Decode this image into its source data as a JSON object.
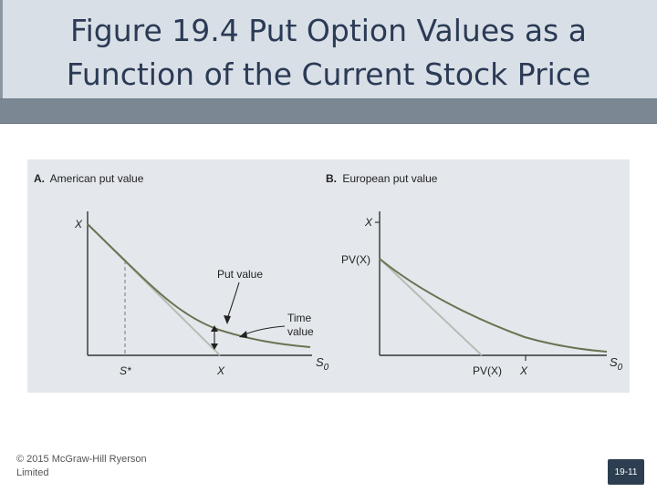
{
  "slide": {
    "title_line1": "Figure 19.4 Put Option Values as a",
    "title_line2": "Function of the Current Stock Price",
    "footer_line1": "© 2015 McGraw-Hill Ryerson",
    "footer_line2": "Limited",
    "page_number": "19-11"
  },
  "panel_a": {
    "heading_letter": "A.",
    "heading_text": "American put value",
    "y_tick": "X",
    "x_tick_sstar": "S*",
    "x_tick_x": "X",
    "x_axis_label": "S",
    "x_axis_sub": "0",
    "annotation_put_value": "Put value",
    "annotation_time_value_1": "Time",
    "annotation_time_value_2": "value"
  },
  "panel_b": {
    "heading_letter": "B.",
    "heading_text": "European put value",
    "y_tick_x": "X",
    "y_tick_pvx": "PV(X)",
    "x_tick_pvx": "PV(X)",
    "x_tick_x": "X",
    "x_axis_label": "S",
    "x_axis_sub": "0"
  },
  "colors": {
    "title_text": "#2b3a55",
    "put_curve": "#6b7352",
    "intrinsic_line": "#b7bcb4",
    "axis": "#333333"
  }
}
